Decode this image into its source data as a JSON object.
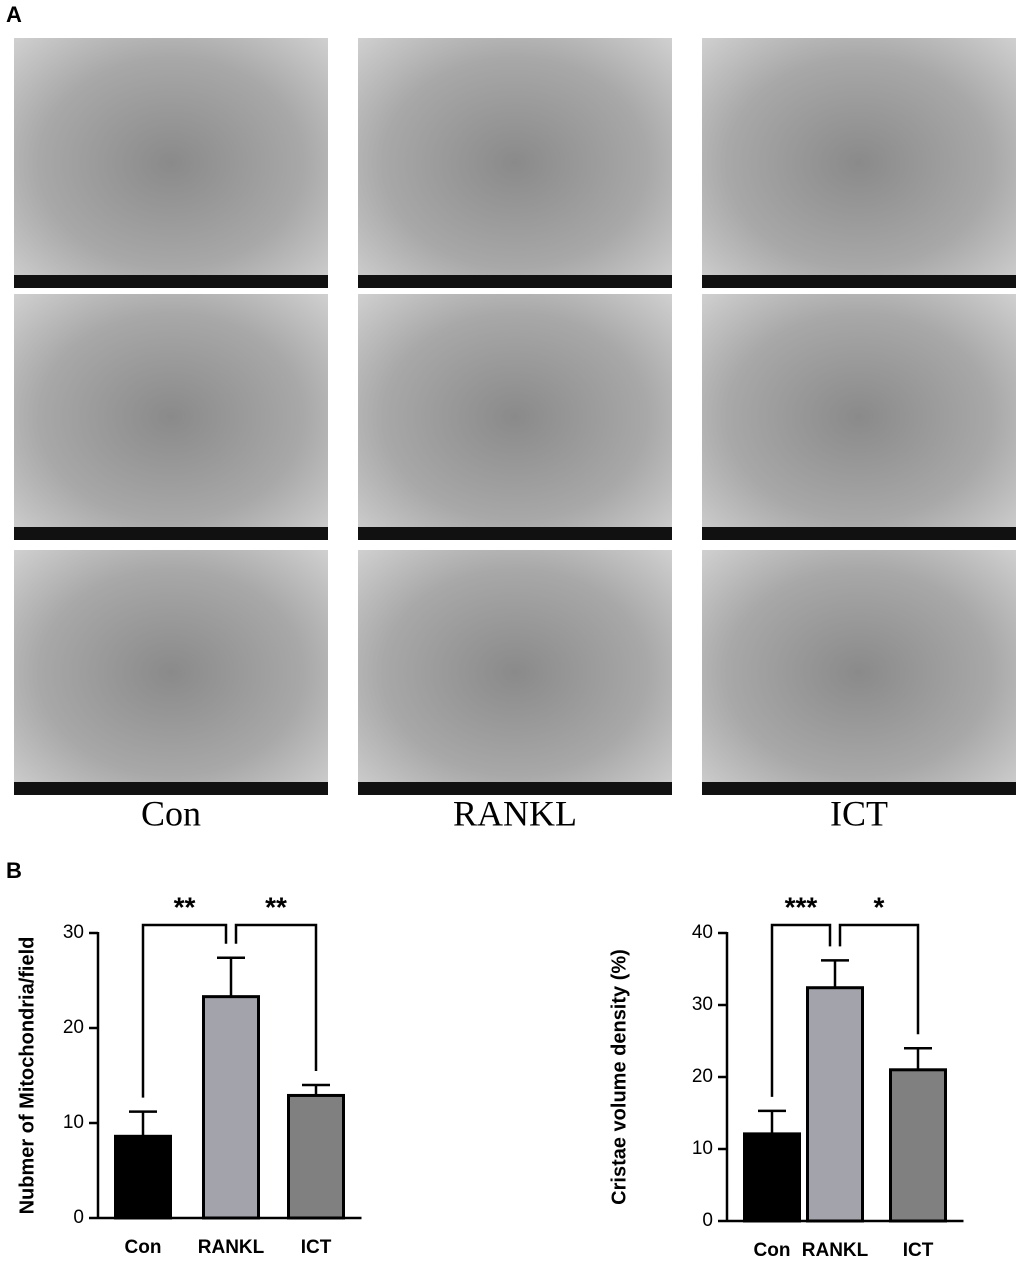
{
  "panel_a": {
    "label": "A",
    "columns": [
      "Con",
      "RANKL",
      "ICT"
    ]
  },
  "panel_b": {
    "label": "B"
  },
  "chart_data": [
    {
      "type": "bar",
      "y_label": "Nubmer of Mitochondria/field",
      "categories": [
        "Con",
        "RANKL",
        "ICT"
      ],
      "values": [
        8.6,
        23.3,
        12.9
      ],
      "errors": [
        2.6,
        4.1,
        1.1
      ],
      "colors": [
        "#000000",
        "#a3a3ab",
        "#808080"
      ],
      "ylim": [
        0,
        30
      ],
      "yticks": [
        0,
        10,
        20,
        30
      ],
      "significance": [
        {
          "between": [
            "Con",
            "RANKL"
          ],
          "label": "**"
        },
        {
          "between": [
            "RANKL",
            "ICT"
          ],
          "label": "**"
        }
      ]
    },
    {
      "type": "bar",
      "y_label": "Cristae volume density (%)",
      "categories": [
        "Con",
        "RANKL",
        "ICT"
      ],
      "values": [
        12.1,
        32.4,
        21.0
      ],
      "errors": [
        3.2,
        3.8,
        3.0
      ],
      "colors": [
        "#000000",
        "#a3a3ab",
        "#808080"
      ],
      "ylim": [
        0,
        40
      ],
      "yticks": [
        0,
        10,
        20,
        30,
        40
      ],
      "significance": [
        {
          "between": [
            "Con",
            "RANKL"
          ],
          "label": "***"
        },
        {
          "between": [
            "RANKL",
            "ICT"
          ],
          "label": "*"
        }
      ]
    }
  ]
}
